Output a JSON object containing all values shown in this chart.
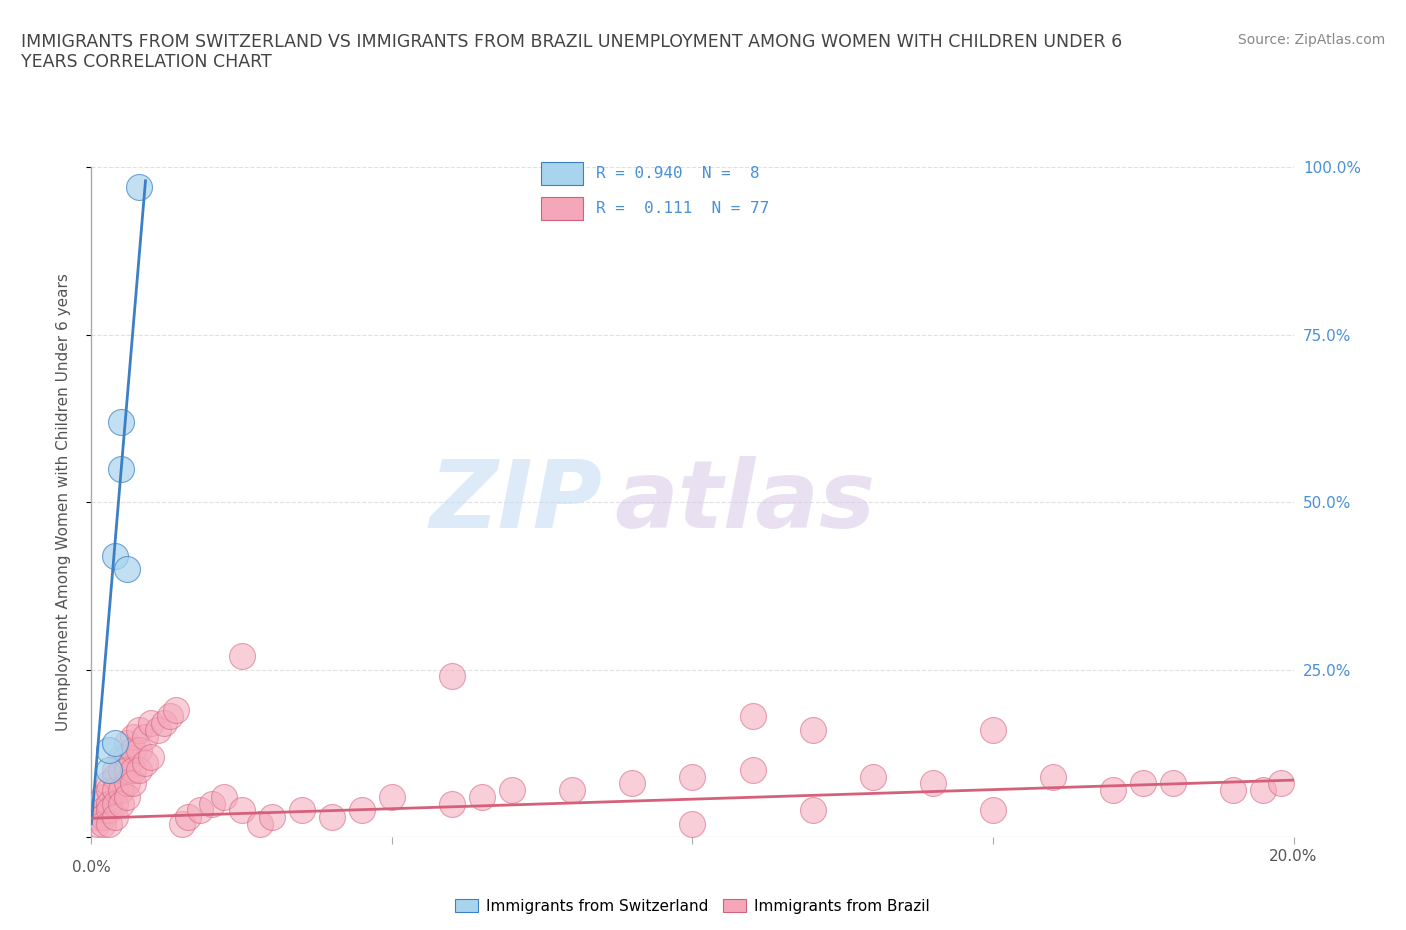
{
  "title": "IMMIGRANTS FROM SWITZERLAND VS IMMIGRANTS FROM BRAZIL UNEMPLOYMENT AMONG WOMEN WITH CHILDREN UNDER 6\nYEARS CORRELATION CHART",
  "source": "Source: ZipAtlas.com",
  "ylabel": "Unemployment Among Women with Children Under 6 years",
  "watermark_zip": "ZIP",
  "watermark_atlas": "atlas",
  "xlim": [
    0.0,
    0.2
  ],
  "ylim": [
    0.0,
    1.0
  ],
  "xticks": [
    0.0,
    0.05,
    0.1,
    0.15,
    0.2
  ],
  "xtick_labels": [
    "",
    "",
    "",
    "",
    "20.0%"
  ],
  "yticks": [
    0.0,
    0.25,
    0.5,
    0.75,
    1.0
  ],
  "ytick_labels_right": [
    "",
    "25.0%",
    "50.0%",
    "75.0%",
    "100.0%"
  ],
  "color_swiss": "#A8D4ED",
  "color_brazil": "#F4A7B9",
  "line_color_swiss": "#3B7FC4",
  "line_color_brazil": "#D4607A",
  "grid_color": "#DDDDDD",
  "title_color": "#444444",
  "swiss_scatter_x": [
    0.003,
    0.003,
    0.004,
    0.004,
    0.005,
    0.005,
    0.006,
    0.008
  ],
  "swiss_scatter_y": [
    0.1,
    0.13,
    0.42,
    0.14,
    0.62,
    0.55,
    0.4,
    0.97
  ],
  "swiss_line_x": [
    0.0,
    0.009
  ],
  "swiss_line_y": [
    0.02,
    0.98
  ],
  "brazil_scatter_x": [
    0.001,
    0.001,
    0.001,
    0.002,
    0.002,
    0.002,
    0.002,
    0.003,
    0.003,
    0.003,
    0.003,
    0.003,
    0.004,
    0.004,
    0.004,
    0.004,
    0.004,
    0.005,
    0.005,
    0.005,
    0.005,
    0.006,
    0.006,
    0.006,
    0.006,
    0.006,
    0.007,
    0.007,
    0.007,
    0.007,
    0.008,
    0.008,
    0.008,
    0.009,
    0.009,
    0.01,
    0.01,
    0.011,
    0.012,
    0.013,
    0.014,
    0.015,
    0.016,
    0.018,
    0.02,
    0.022,
    0.025,
    0.025,
    0.028,
    0.03,
    0.035,
    0.04,
    0.045,
    0.05,
    0.06,
    0.065,
    0.07,
    0.08,
    0.09,
    0.1,
    0.11,
    0.12,
    0.13,
    0.14,
    0.15,
    0.16,
    0.17,
    0.175,
    0.18,
    0.19,
    0.195,
    0.198,
    0.06,
    0.1,
    0.11,
    0.12,
    0.15
  ],
  "brazil_scatter_y": [
    0.05,
    0.03,
    0.02,
    0.06,
    0.04,
    0.03,
    0.02,
    0.08,
    0.07,
    0.05,
    0.04,
    0.02,
    0.1,
    0.09,
    0.07,
    0.05,
    0.03,
    0.12,
    0.1,
    0.07,
    0.05,
    0.14,
    0.12,
    0.1,
    0.08,
    0.06,
    0.15,
    0.13,
    0.1,
    0.08,
    0.16,
    0.13,
    0.1,
    0.15,
    0.11,
    0.17,
    0.12,
    0.16,
    0.17,
    0.18,
    0.19,
    0.02,
    0.03,
    0.04,
    0.05,
    0.06,
    0.27,
    0.04,
    0.02,
    0.03,
    0.04,
    0.03,
    0.04,
    0.06,
    0.05,
    0.06,
    0.07,
    0.07,
    0.08,
    0.09,
    0.1,
    0.04,
    0.09,
    0.08,
    0.04,
    0.09,
    0.07,
    0.08,
    0.08,
    0.07,
    0.07,
    0.08,
    0.24,
    0.02,
    0.18,
    0.16,
    0.16
  ],
  "brazil_line_x": [
    0.0,
    0.2
  ],
  "brazil_line_y": [
    0.028,
    0.085
  ],
  "background_color": "#FFFFFF"
}
